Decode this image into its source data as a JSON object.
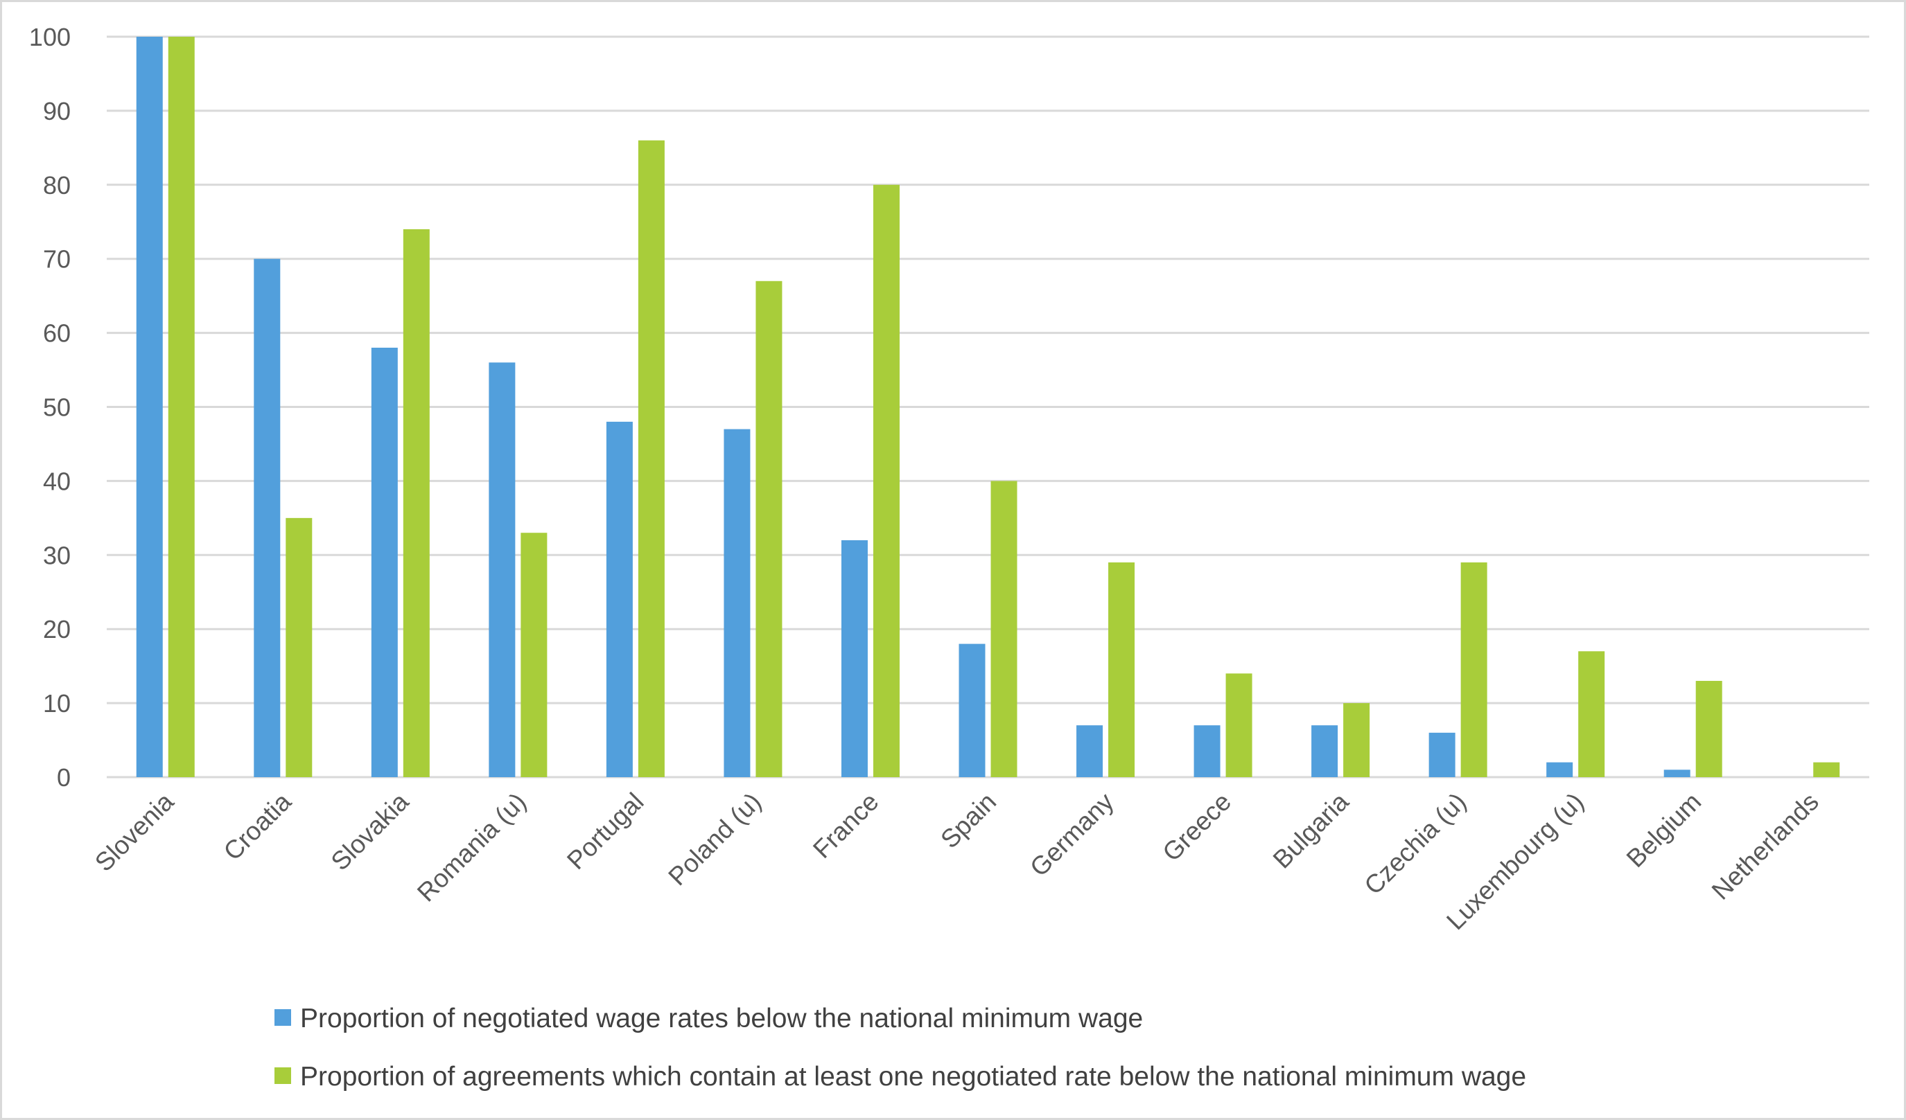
{
  "chart_data": {
    "type": "bar",
    "title": "",
    "xlabel": "",
    "ylabel": "",
    "ylim": [
      0,
      100
    ],
    "yticks": [
      0,
      10,
      20,
      30,
      40,
      50,
      60,
      70,
      80,
      90,
      100
    ],
    "grid": true,
    "legend_position": "bottom",
    "categories": [
      "Slovenia",
      "Croatia",
      "Slovakia",
      "Romania (u)",
      "Portugal",
      "Poland (u)",
      "France",
      "Spain",
      "Germany",
      "Greece",
      "Bulgaria",
      "Czechia (u)",
      "Luxembourg (u)",
      "Belgium",
      "Netherlands"
    ],
    "series": [
      {
        "name": "Proportion of negotiated wage rates below the national minimum wage",
        "color": "#529fdc",
        "values": [
          100,
          70,
          58,
          56,
          48,
          47,
          32,
          18,
          7,
          7,
          7,
          6,
          2,
          1,
          0
        ]
      },
      {
        "name": "Proportion of agreements which contain at least one negotiated rate below the national minimum wage",
        "color": "#a8cd3a",
        "values": [
          100,
          35,
          74,
          33,
          86,
          67,
          80,
          40,
          29,
          14,
          10,
          29,
          17,
          13,
          2
        ]
      }
    ]
  }
}
